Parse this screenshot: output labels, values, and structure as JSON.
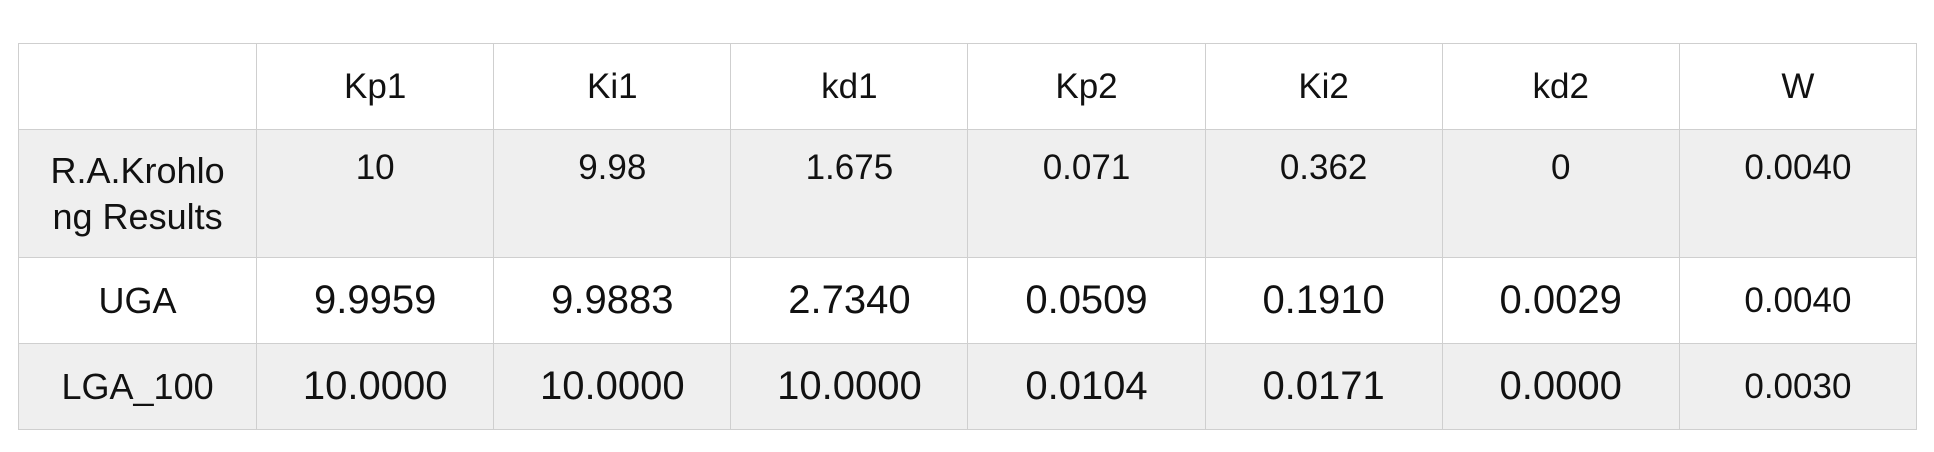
{
  "table": {
    "headers": [
      "",
      "Kp1",
      "Ki1",
      "kd1",
      "Kp2",
      "Ki2",
      "kd2",
      "W"
    ],
    "rows": [
      {
        "label_line1": "R.A.Krohlo",
        "label_line2": "ng Results",
        "values": [
          "10",
          "9.98",
          "1.675",
          "0.071",
          "0.362",
          "0",
          "0.0040"
        ]
      },
      {
        "label": "UGA",
        "values": [
          "9.9959",
          "9.9883",
          "2.7340",
          "0.0509",
          "0.1910",
          "0.0029",
          "0.0040"
        ]
      },
      {
        "label": "LGA_100",
        "values": [
          "10.0000",
          "10.0000",
          "10.0000",
          "0.0104",
          "0.0171",
          "0.0000",
          "0.0030"
        ]
      }
    ]
  }
}
